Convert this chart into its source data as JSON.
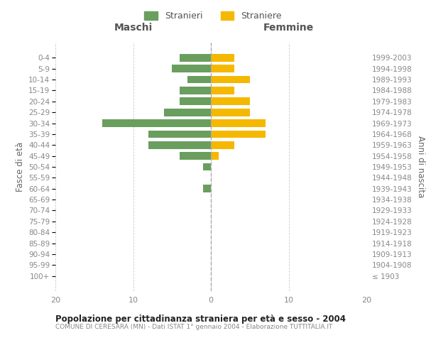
{
  "age_groups": [
    "100+",
    "95-99",
    "90-94",
    "85-89",
    "80-84",
    "75-79",
    "70-74",
    "65-69",
    "60-64",
    "55-59",
    "50-54",
    "45-49",
    "40-44",
    "35-39",
    "30-34",
    "25-29",
    "20-24",
    "15-19",
    "10-14",
    "5-9",
    "0-4"
  ],
  "birth_years": [
    "≤ 1903",
    "1904-1908",
    "1909-1913",
    "1914-1918",
    "1919-1923",
    "1924-1928",
    "1929-1933",
    "1934-1938",
    "1939-1943",
    "1944-1948",
    "1949-1953",
    "1954-1958",
    "1959-1963",
    "1964-1968",
    "1969-1973",
    "1974-1978",
    "1979-1983",
    "1984-1988",
    "1989-1993",
    "1994-1998",
    "1999-2003"
  ],
  "maschi": [
    0,
    0,
    0,
    0,
    0,
    0,
    0,
    0,
    1,
    0,
    1,
    4,
    8,
    8,
    14,
    6,
    4,
    4,
    3,
    5,
    4
  ],
  "femmine": [
    0,
    0,
    0,
    0,
    0,
    0,
    0,
    0,
    0,
    0,
    0,
    1,
    3,
    7,
    7,
    5,
    5,
    3,
    5,
    3,
    3
  ],
  "color_maschi": "#6a9e5e",
  "color_femmine": "#f5b800",
  "title": "Popolazione per cittadinanza straniera per età e sesso - 2004",
  "subtitle": "COMUNE DI CERESARA (MN) - Dati ISTAT 1° gennaio 2004 - Elaborazione TUTTITALIA.IT",
  "xlabel_left": "Maschi",
  "xlabel_right": "Femmine",
  "ylabel_left": "Fasce di età",
  "ylabel_right": "Anni di nascita",
  "legend_maschi": "Stranieri",
  "legend_femmine": "Straniere",
  "xlim": 20,
  "background_color": "#ffffff",
  "grid_color": "#cccccc"
}
